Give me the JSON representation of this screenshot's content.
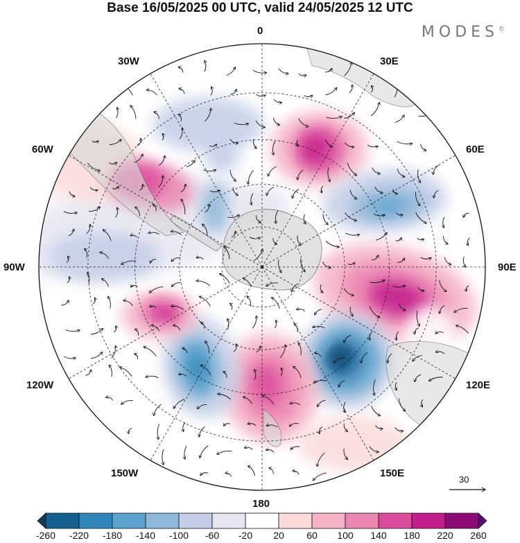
{
  "title": "Base 16/05/2025 00 UTC, valid 24/05/2025 12 UTC",
  "brand": {
    "name": "MODES",
    "mark": "©"
  },
  "meridians": {
    "top": "0",
    "top_left": "30W",
    "top_right": "30E",
    "upper_left": "60W",
    "upper_right": "60E",
    "left": "90W",
    "right": "90E",
    "lower_left": "120W",
    "lower_right": "120E",
    "bottom_left": "150W",
    "bottom_right": "150E",
    "bottom": "180"
  },
  "reference_vector": {
    "value": "30"
  },
  "colorbar": {
    "ticks": [
      "-260",
      "-220",
      "-180",
      "-140",
      "-100",
      "-60",
      "-20",
      "20",
      "60",
      "100",
      "140",
      "180",
      "220",
      "260"
    ],
    "colors": [
      "#0f3b5e",
      "#155f8f",
      "#2f86b9",
      "#5ba2cc",
      "#8fb7d9",
      "#c3cde6",
      "#e6e6f2",
      "#ffffff",
      "#fbdada",
      "#f5b4c6",
      "#ec86b2",
      "#db4d9c",
      "#c11f8b",
      "#8e0b77",
      "#5b0e6f"
    ]
  },
  "colors": {
    "ocean_bg": "#ffffff",
    "land": "#d9d9d9",
    "coast": "#555555",
    "grid": "#222222"
  }
}
